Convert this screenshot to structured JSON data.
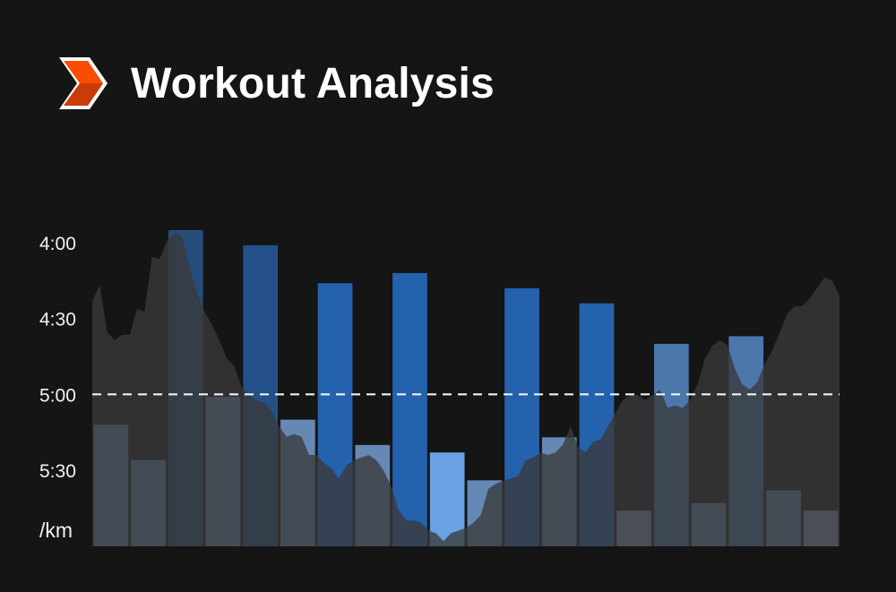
{
  "header": {
    "title": "Workout Analysis",
    "logo_icon": "orange-chevron-logo-icon"
  },
  "colors": {
    "background": "#151515",
    "elevation": "#3a3a3a",
    "logo_orange": "#fc4c02",
    "logo_dark_orange": "#c83c0a",
    "reference_line": "#f2f2f2"
  },
  "chart_data": {
    "type": "bar",
    "title": "Workout Analysis",
    "ylabel": "/km",
    "y_axis": {
      "unit_label": "/km",
      "tick_labels": [
        "4:00",
        "4:30",
        "5:00",
        "5:30"
      ],
      "tick_values_sec_per_km": [
        240,
        270,
        300,
        330
      ],
      "range_sec_per_km": [
        235,
        360
      ],
      "inverted": true
    },
    "reference_line": {
      "value": "5:00",
      "style": "dashed"
    },
    "bars": [
      {
        "pace": "5:12",
        "type": "easy",
        "color": "#6688b4"
      },
      {
        "pace": "5:26",
        "type": "easy",
        "color": "#6688b4"
      },
      {
        "pace": "3:55",
        "type": "interval",
        "color": "#264c7c"
      },
      {
        "pace": "5:01",
        "type": "easy",
        "color": "#6e8fbc"
      },
      {
        "pace": "4:01",
        "type": "interval",
        "color": "#235089"
      },
      {
        "pace": "5:10",
        "type": "easy",
        "color": "#6688b4"
      },
      {
        "pace": "4:16",
        "type": "interval",
        "color": "#2562ae"
      },
      {
        "pace": "5:20",
        "type": "easy",
        "color": "#6688b4"
      },
      {
        "pace": "4:12",
        "type": "interval",
        "color": "#2462ae"
      },
      {
        "pace": "5:23",
        "type": "recovery",
        "color": "#6aa2e4"
      },
      {
        "pace": "5:34",
        "type": "easy",
        "color": "#6688b4"
      },
      {
        "pace": "4:18",
        "type": "interval",
        "color": "#2562ae"
      },
      {
        "pace": "5:17",
        "type": "easy",
        "color": "#6688b4"
      },
      {
        "pace": "4:24",
        "type": "interval",
        "color": "#2562ae"
      },
      {
        "pace": "5:46",
        "type": "cooldown",
        "color": "#8a9cb8"
      },
      {
        "pace": "4:40",
        "type": "interval",
        "color": "#4b77ad"
      },
      {
        "pace": "5:43",
        "type": "easy",
        "color": "#6688b4"
      },
      {
        "pace": "4:37",
        "type": "interval",
        "color": "#4b77ad"
      },
      {
        "pace": "5:38",
        "type": "easy",
        "color": "#6688b4"
      },
      {
        "pace": "5:46",
        "type": "cooldown",
        "color": "#8a9cb8"
      }
    ],
    "elevation_profile": {
      "color": "#3a3a3a",
      "points": [
        [
          0,
          0.94
        ],
        [
          0.01,
          1.0
        ],
        [
          0.02,
          0.82
        ],
        [
          0.03,
          0.79
        ],
        [
          0.04,
          0.81
        ],
        [
          0.05,
          0.81
        ],
        [
          0.06,
          0.91
        ],
        [
          0.07,
          0.9
        ],
        [
          0.08,
          1.11
        ],
        [
          0.09,
          1.1
        ],
        [
          0.1,
          1.17
        ],
        [
          0.11,
          1.2
        ],
        [
          0.12,
          1.19
        ],
        [
          0.13,
          1.07
        ],
        [
          0.14,
          0.97
        ],
        [
          0.15,
          0.9
        ],
        [
          0.16,
          0.85
        ],
        [
          0.17,
          0.79
        ],
        [
          0.18,
          0.72
        ],
        [
          0.19,
          0.69
        ],
        [
          0.2,
          0.61
        ],
        [
          0.21,
          0.58
        ],
        [
          0.22,
          0.56
        ],
        [
          0.23,
          0.55
        ],
        [
          0.24,
          0.52
        ],
        [
          0.25,
          0.46
        ],
        [
          0.26,
          0.42
        ],
        [
          0.27,
          0.43
        ],
        [
          0.28,
          0.42
        ],
        [
          0.29,
          0.35
        ],
        [
          0.3,
          0.35
        ],
        [
          0.31,
          0.32
        ],
        [
          0.32,
          0.3
        ],
        [
          0.33,
          0.26
        ],
        [
          0.34,
          0.31
        ],
        [
          0.35,
          0.33
        ],
        [
          0.36,
          0.34
        ],
        [
          0.37,
          0.35
        ],
        [
          0.38,
          0.33
        ],
        [
          0.39,
          0.29
        ],
        [
          0.4,
          0.23
        ],
        [
          0.41,
          0.14
        ],
        [
          0.42,
          0.1
        ],
        [
          0.43,
          0.1
        ],
        [
          0.44,
          0.09
        ],
        [
          0.45,
          0.06
        ],
        [
          0.46,
          0.05
        ],
        [
          0.47,
          0.02
        ],
        [
          0.48,
          0.05
        ],
        [
          0.49,
          0.06
        ],
        [
          0.5,
          0.07
        ],
        [
          0.51,
          0.09
        ],
        [
          0.52,
          0.12
        ],
        [
          0.53,
          0.22
        ],
        [
          0.54,
          0.24
        ],
        [
          0.55,
          0.25
        ],
        [
          0.56,
          0.26
        ],
        [
          0.57,
          0.27
        ],
        [
          0.58,
          0.33
        ],
        [
          0.59,
          0.34
        ],
        [
          0.6,
          0.36
        ],
        [
          0.61,
          0.35
        ],
        [
          0.62,
          0.36
        ],
        [
          0.63,
          0.39
        ],
        [
          0.64,
          0.46
        ],
        [
          0.65,
          0.38
        ],
        [
          0.66,
          0.36
        ],
        [
          0.67,
          0.4
        ],
        [
          0.68,
          0.41
        ],
        [
          0.69,
          0.46
        ],
        [
          0.7,
          0.51
        ],
        [
          0.71,
          0.56
        ],
        [
          0.72,
          0.58
        ],
        [
          0.73,
          0.58
        ],
        [
          0.74,
          0.56
        ],
        [
          0.75,
          0.58
        ],
        [
          0.76,
          0.6
        ],
        [
          0.77,
          0.53
        ],
        [
          0.78,
          0.54
        ],
        [
          0.79,
          0.53
        ],
        [
          0.8,
          0.56
        ],
        [
          0.81,
          0.62
        ],
        [
          0.82,
          0.72
        ],
        [
          0.83,
          0.77
        ],
        [
          0.84,
          0.79
        ],
        [
          0.85,
          0.77
        ],
        [
          0.86,
          0.68
        ],
        [
          0.87,
          0.62
        ],
        [
          0.88,
          0.6
        ],
        [
          0.89,
          0.63
        ],
        [
          0.9,
          0.7
        ],
        [
          0.91,
          0.75
        ],
        [
          0.92,
          0.82
        ],
        [
          0.93,
          0.89
        ],
        [
          0.94,
          0.92
        ],
        [
          0.95,
          0.92
        ],
        [
          0.96,
          0.95
        ],
        [
          0.97,
          0.99
        ],
        [
          0.98,
          1.03
        ],
        [
          0.99,
          1.02
        ],
        [
          1.0,
          0.96
        ]
      ]
    }
  }
}
